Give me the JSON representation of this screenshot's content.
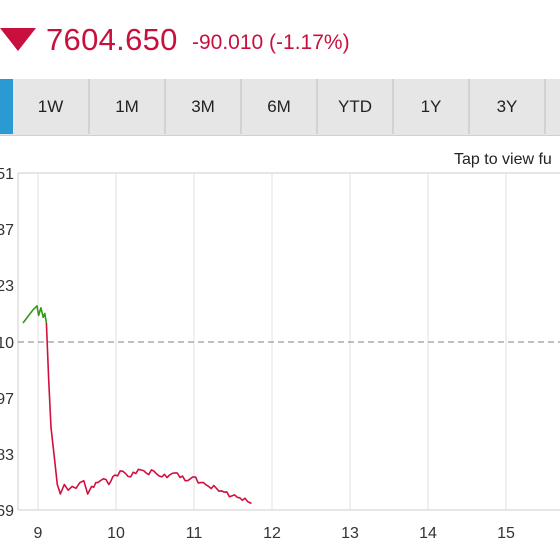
{
  "quote": {
    "price": "7604.650",
    "change": "-90.010 (-1.17%)",
    "direction_icon": "down-triangle-icon",
    "color": "#c8103e"
  },
  "tabs": [
    "",
    "1W",
    "1M",
    "3M",
    "6M",
    "YTD",
    "1Y",
    "3Y",
    ""
  ],
  "active_tab_index": 0,
  "accent_color": "#2a9bd2",
  "chart": {
    "hint": "Tap to view fu",
    "y_tick_labels": [
      "51",
      "37",
      "23",
      "10",
      "97",
      "83",
      "69"
    ],
    "x_tick_labels": [
      "9",
      "10",
      "11",
      "12",
      "13",
      "14",
      "15"
    ],
    "reference_line": "previous close (dashed)",
    "up_color": "#2e9a16",
    "down_color": "#d0103e"
  },
  "chart_data": {
    "type": "line",
    "x_unit": "hour of day",
    "xlim": [
      8.8,
      15.7
    ],
    "ylim_labels": [
      "51",
      "69"
    ],
    "series": [
      {
        "color": "#2e9a16",
        "x": [
          8.82,
          8.95,
          9.0,
          9.02,
          9.05,
          9.08,
          9.1,
          9.12
        ],
        "y": [
          10,
          17,
          19,
          14,
          18,
          13,
          15,
          10
        ]
      },
      {
        "color": "#d0103e",
        "x": [
          9.12,
          9.15,
          9.18,
          9.22,
          9.26,
          9.3,
          9.35,
          9.4,
          9.45,
          9.5,
          9.55,
          9.6,
          9.65,
          9.7,
          9.78,
          9.85,
          9.92,
          10.0,
          10.1,
          10.2,
          10.3,
          10.4,
          10.5,
          10.6,
          10.7,
          10.8,
          10.9,
          11.0,
          11.1,
          11.2,
          11.3,
          11.4,
          11.5,
          11.6,
          11.7,
          11.75
        ],
        "y": [
          10,
          -20,
          -45,
          -60,
          -75,
          -80,
          -75,
          -78,
          -76,
          -77,
          -74,
          -73,
          -80,
          -76,
          -74,
          -72,
          -75,
          -70,
          -68,
          -71,
          -67,
          -69,
          -68,
          -71,
          -70,
          -69,
          -73,
          -71,
          -74,
          -76,
          -77,
          -79,
          -81,
          -82,
          -84,
          -85
        ]
      }
    ]
  }
}
